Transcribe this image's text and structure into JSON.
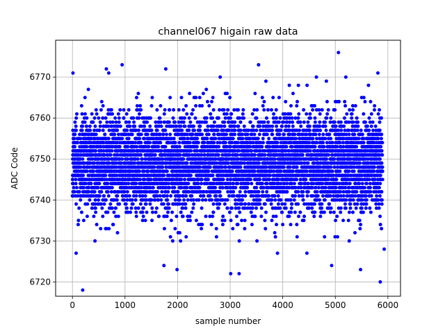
{
  "chart_data": {
    "type": "scatter",
    "title": "channel067 higain raw data",
    "xlabel": "sample number",
    "ylabel": "ADC Code",
    "xlim": [
      -320,
      6240
    ],
    "ylim": [
      6716.5,
      6779
    ],
    "xticks": [
      0,
      1000,
      2000,
      3000,
      4000,
      5000,
      6000
    ],
    "yticks": [
      6720,
      6730,
      6740,
      6750,
      6760,
      6770
    ],
    "grid": true,
    "marker_color": "#0000ff",
    "series": [
      {
        "n_points": 5900,
        "sample_rate_x": 1,
        "typical_range": [
          6733,
          6766
        ],
        "center": 6749,
        "spread_std": 6.0,
        "outliers": [
          [
            10,
            6771
          ],
          [
            70,
            6727
          ],
          [
            195,
            6718
          ],
          [
            690,
            6771
          ],
          [
            645,
            6772
          ],
          [
            945,
            6773
          ],
          [
            1740,
            6724
          ],
          [
            1775,
            6772
          ],
          [
            1990,
            6723
          ],
          [
            3010,
            6722
          ],
          [
            3170,
            6722
          ],
          [
            3540,
            6773
          ],
          [
            3900,
            6727
          ],
          [
            4460,
            6727
          ],
          [
            4930,
            6724
          ],
          [
            5060,
            6776
          ],
          [
            5480,
            6723
          ],
          [
            5810,
            6771
          ],
          [
            5855,
            6720
          ],
          [
            5930,
            6728
          ],
          [
            3680,
            6769
          ],
          [
            4830,
            6769
          ],
          [
            4640,
            6770
          ],
          [
            5200,
            6770
          ],
          [
            2810,
            6770
          ]
        ]
      }
    ]
  }
}
